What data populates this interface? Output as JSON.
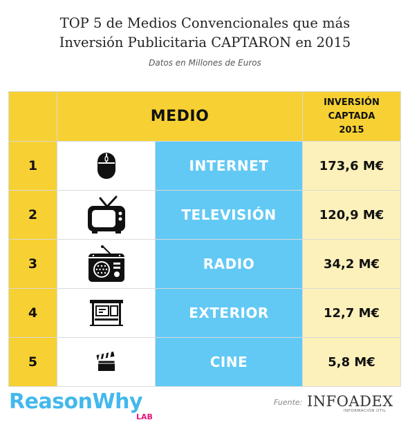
{
  "title_line1": "TOP 5 de Medios Convencionales que más",
  "title_line2": "Inversión Publicitaria CAPTARON en 2015",
  "subtitle": "Datos en Millones de Euros",
  "header": {
    "medio": "MEDIO",
    "inversion_line1": "INVERSIÓN CAPTADA",
    "inversion_line2": "2015"
  },
  "rows": [
    {
      "rank": "1",
      "name": "INTERNET",
      "value": "173,6 M€",
      "icon": "mouse-icon"
    },
    {
      "rank": "2",
      "name": "TELEVISIÓN",
      "value": "120,9 M€",
      "icon": "tv-icon"
    },
    {
      "rank": "3",
      "name": "RADIO",
      "value": "34,2 M€",
      "icon": "radio-icon"
    },
    {
      "rank": "4",
      "name": "EXTERIOR",
      "value": "12,7 M€",
      "icon": "bus-stop-icon"
    },
    {
      "rank": "5",
      "name": "CINE",
      "value": "5,8 M€",
      "icon": "clapperboard-icon"
    }
  ],
  "chart_data": {
    "type": "table",
    "title": "TOP 5 de Medios Convencionales que más Inversión Publicitaria CAPTARON en 2015",
    "subtitle": "Datos en Millones de Euros",
    "columns": [
      "",
      "MEDIO",
      "INVERSIÓN CAPTADA 2015"
    ],
    "categories": [
      "INTERNET",
      "TELEVISIÓN",
      "RADIO",
      "EXTERIOR",
      "CINE"
    ],
    "values": [
      173.6,
      120.9,
      34.2,
      12.7,
      5.8
    ],
    "unit": "M€"
  },
  "footer": {
    "brand": "ReasonWhy",
    "brand_suffix": "LAB",
    "source_label": "Fuente:",
    "source_name": "INFOADEX",
    "source_tagline": "INFORMACIÓN ÚTIL"
  },
  "colors": {
    "yellow": "#f7d133",
    "light_yellow": "#fdf1bb",
    "blue": "#62c9f5",
    "brand_blue": "#43b8ec",
    "brand_pink": "#e8157d"
  }
}
